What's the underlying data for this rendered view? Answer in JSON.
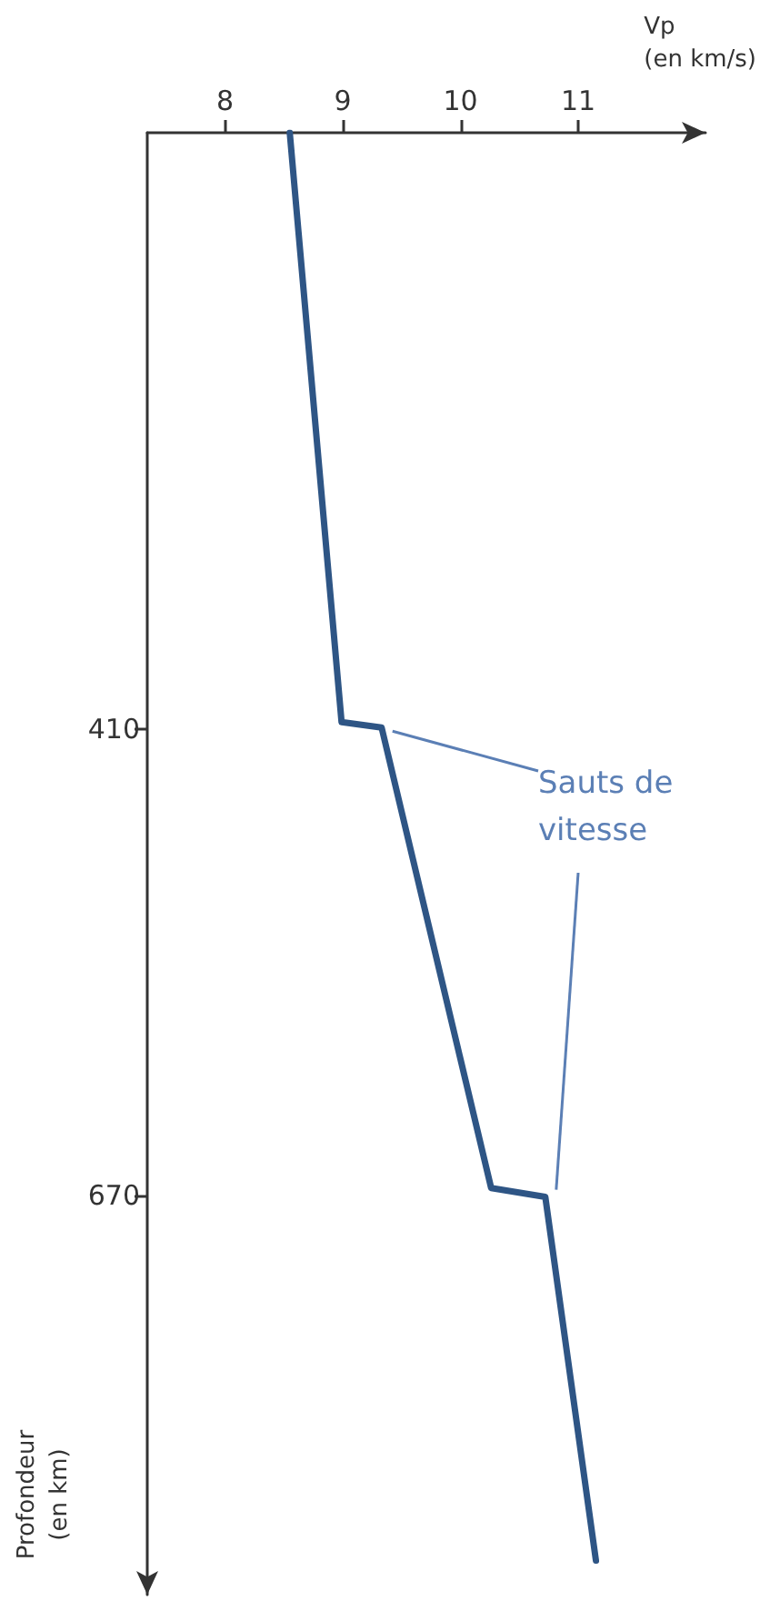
{
  "chart_data": {
    "type": "line",
    "xlabel": "Vp (en km/s)",
    "ylabel": "Profondeur (en km)",
    "x": [
      8.55,
      8.99,
      9.33,
      10.26,
      10.72,
      11.15
    ],
    "series": [
      {
        "color": "#2e5585",
        "values": [
          77,
          406,
          409,
          666,
          671,
          874
        ]
      }
    ],
    "xlim": [
      7.34,
      12.08
    ],
    "xticks": [
      8,
      9,
      10,
      11
    ],
    "ylim": [
      893,
      77
    ],
    "yticks": [
      410,
      670
    ],
    "annotations": [
      {
        "text": "Sauts de vitesse",
        "x": 9.33,
        "y": 409
      }
    ],
    "grid": false,
    "marker": "none",
    "line_style": "solid"
  }
}
